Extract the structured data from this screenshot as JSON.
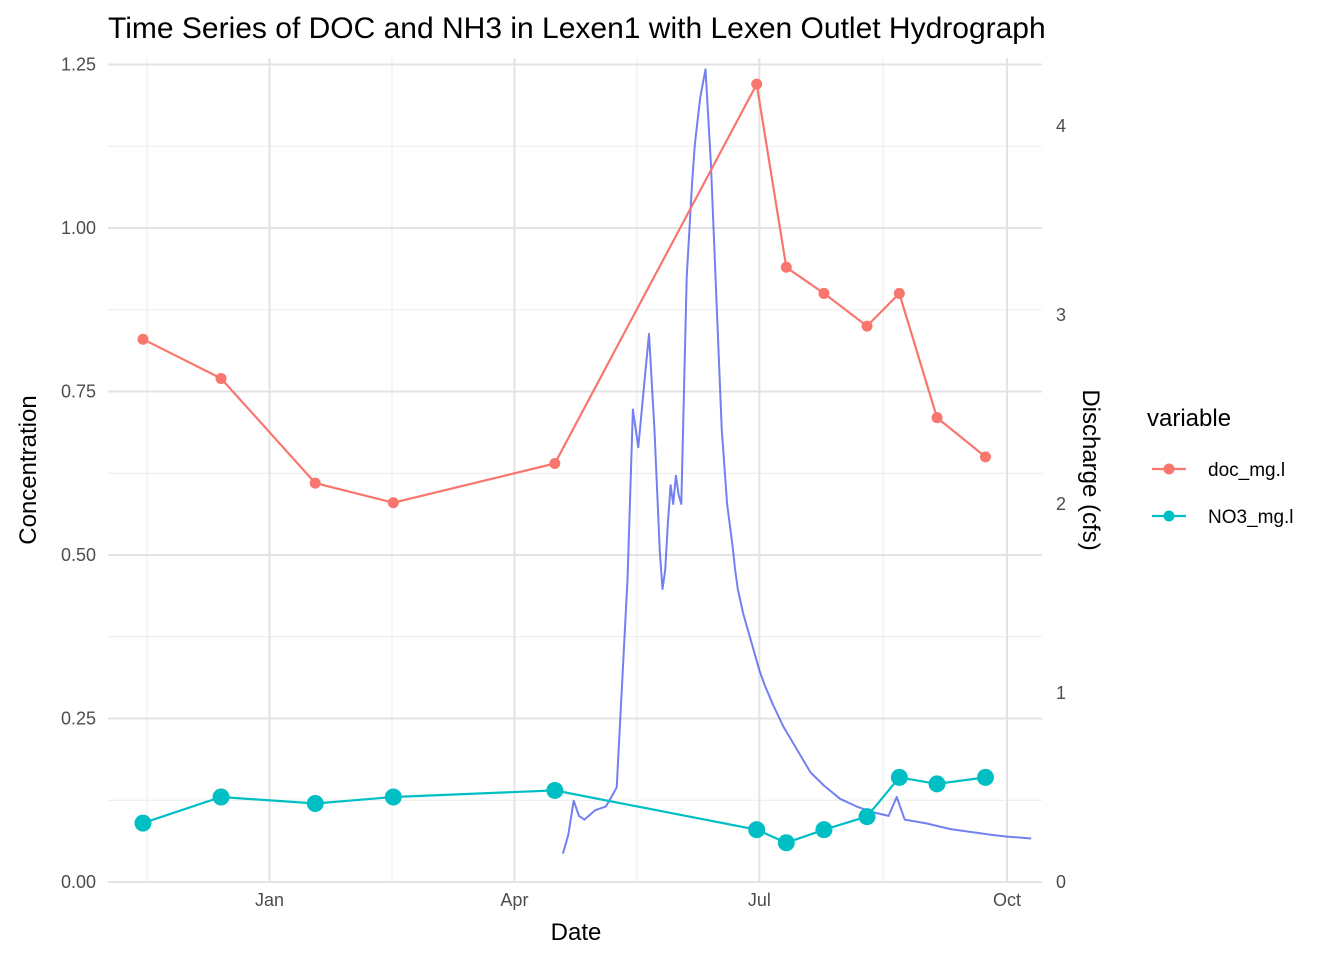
{
  "chart_data": {
    "type": "line",
    "title": "Time Series of DOC and NH3 in Lexen1 with Lexen Outlet Hydrograph",
    "xlabel": "Date",
    "ylabel": "Concentration",
    "y2label": "Discharge (cfs)",
    "x_ticks": [
      {
        "label": "Jan",
        "date": "2024-01-01"
      },
      {
        "label": "Apr",
        "date": "2024-04-01"
      },
      {
        "label": "Jul",
        "date": "2024-07-01"
      },
      {
        "label": "Oct",
        "date": "2024-10-01"
      }
    ],
    "xlim": [
      "2023-11-02",
      "2024-10-14"
    ],
    "ylim": [
      0,
      1.26
    ],
    "y_ticks": [
      "0.00",
      "0.25",
      "0.50",
      "0.75",
      "1.00",
      "1.25"
    ],
    "y2lim": [
      0,
      4.36
    ],
    "y2_ticks": [
      "0",
      "1",
      "2",
      "3",
      "4"
    ],
    "grid": true,
    "legend": {
      "title": "variable",
      "position": "right",
      "entries": [
        {
          "name": "doc_mg.l",
          "color": "#F8766D"
        },
        {
          "name": "NO3_mg.l",
          "color": "#00BFC4"
        }
      ]
    },
    "series": [
      {
        "name": "doc_mg.l",
        "color": "#F8766D",
        "axis": "left",
        "x": [
          "2023-11-15",
          "2023-12-14",
          "2024-01-18",
          "2024-02-16",
          "2024-04-16",
          "2024-06-30",
          "2024-07-11",
          "2024-07-25",
          "2024-08-10",
          "2024-08-22",
          "2024-09-05",
          "2024-09-23"
        ],
        "values": [
          0.83,
          0.77,
          0.61,
          0.58,
          0.64,
          1.22,
          0.94,
          0.9,
          0.85,
          0.9,
          0.71,
          0.65
        ]
      },
      {
        "name": "NO3_mg.l",
        "color": "#00BFC4",
        "axis": "left",
        "x": [
          "2023-11-15",
          "2023-12-14",
          "2024-01-18",
          "2024-02-16",
          "2024-04-16",
          "2024-06-30",
          "2024-07-11",
          "2024-07-25",
          "2024-08-10",
          "2024-08-22",
          "2024-09-05",
          "2024-09-23"
        ],
        "values": [
          0.09,
          0.13,
          0.12,
          0.13,
          0.14,
          0.08,
          0.06,
          0.08,
          0.1,
          0.16,
          0.15,
          0.16
        ]
      },
      {
        "color": "#4455ee",
        "axis": "right",
        "unit": "cfs",
        "x": [
          "2024-04-19",
          "2024-04-21",
          "2024-04-23",
          "2024-04-25",
          "2024-04-27",
          "2024-05-01",
          "2024-05-05",
          "2024-05-09",
          "2024-05-13",
          "2024-05-15",
          "2024-05-17",
          "2024-05-19",
          "2024-05-21",
          "2024-05-23",
          "2024-05-25",
          "2024-05-26",
          "2024-05-27",
          "2024-05-28",
          "2024-05-29",
          "2024-05-30",
          "2024-05-31",
          "2024-06-01",
          "2024-06-02",
          "2024-06-03",
          "2024-06-04",
          "2024-06-06",
          "2024-06-07",
          "2024-06-09",
          "2024-06-11",
          "2024-06-13",
          "2024-06-15",
          "2024-06-17",
          "2024-06-19",
          "2024-06-21",
          "2024-06-22",
          "2024-06-23",
          "2024-06-25",
          "2024-06-27",
          "2024-06-29",
          "2024-07-01",
          "2024-07-03",
          "2024-07-06",
          "2024-07-10",
          "2024-07-15",
          "2024-07-20",
          "2024-07-25",
          "2024-07-31",
          "2024-08-06",
          "2024-08-12",
          "2024-08-18",
          "2024-08-21",
          "2024-08-24",
          "2024-09-01",
          "2024-09-10",
          "2024-09-20",
          "2024-09-25",
          "2024-10-01",
          "2024-10-10"
        ],
        "values": [
          0.15,
          0.25,
          0.43,
          0.35,
          0.33,
          0.38,
          0.4,
          0.5,
          1.6,
          2.5,
          2.3,
          2.6,
          2.9,
          2.4,
          1.75,
          1.55,
          1.65,
          1.9,
          2.1,
          2.0,
          2.15,
          2.05,
          2.0,
          2.6,
          3.2,
          3.7,
          3.9,
          4.15,
          4.3,
          3.8,
          3.1,
          2.4,
          2.0,
          1.78,
          1.65,
          1.55,
          1.42,
          1.32,
          1.22,
          1.12,
          1.04,
          0.94,
          0.82,
          0.7,
          0.58,
          0.51,
          0.44,
          0.4,
          0.37,
          0.35,
          0.45,
          0.33,
          0.31,
          0.28,
          0.26,
          0.25,
          0.24,
          0.23
        ]
      }
    ]
  }
}
